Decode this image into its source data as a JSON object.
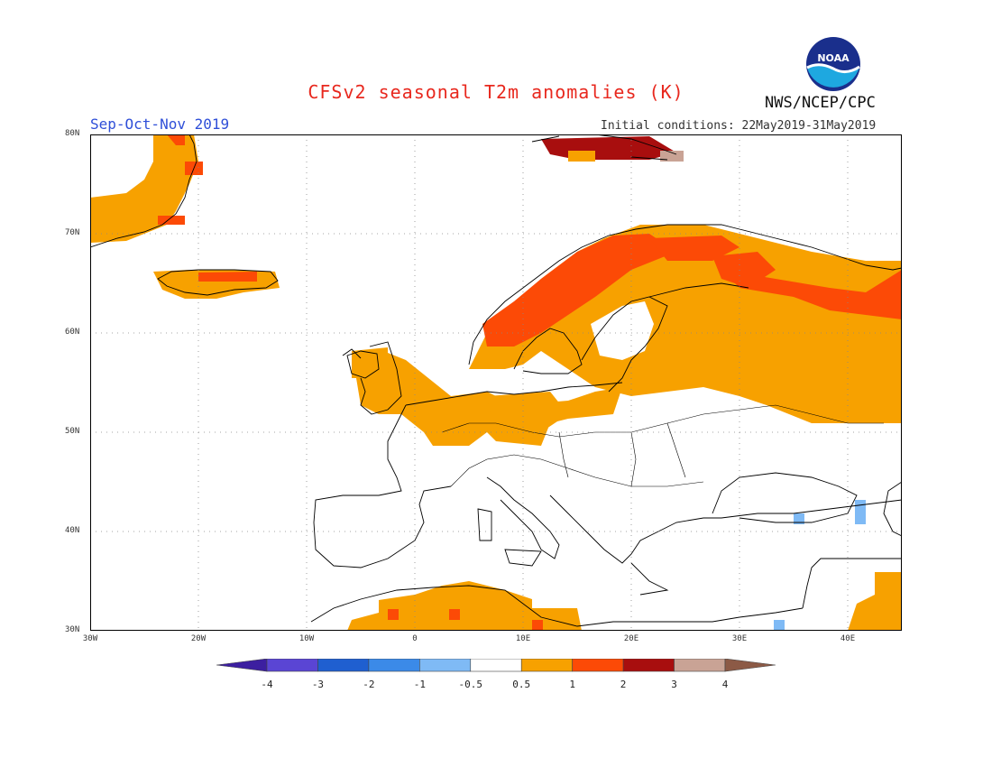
{
  "header": {
    "title": "CFSv2 seasonal T2m anomalies (K)",
    "season": "Sep-Oct-Nov 2019",
    "initial_conditions": "Initial conditions: 22May2019-31May2019",
    "agency": "NWS/NCEP/CPC",
    "logo_icon": "noaa-logo-icon"
  },
  "map": {
    "lon_range": [
      -30,
      45
    ],
    "lat_range": [
      30,
      80
    ],
    "lon_ticks": [
      "30W",
      "20W",
      "10W",
      "0",
      "10E",
      "20E",
      "30E",
      "40E"
    ],
    "lat_ticks": [
      "30N",
      "40N",
      "50N",
      "60N",
      "70N",
      "80N"
    ],
    "gridlines": "dotted",
    "anomaly_regions": [
      {
        "name": "Scandinavia and northwest Russia",
        "category": "1 to 2"
      },
      {
        "name": "Western and central Europe",
        "category": "0.5 to 1"
      },
      {
        "name": "Svalbard",
        "category": "2 to 3"
      },
      {
        "name": "North Africa",
        "category": "0.5 to 1"
      },
      {
        "name": "Turkey and Caucasus",
        "category": "-1 to -0.5"
      }
    ]
  },
  "colorbar": {
    "labels": [
      "-4",
      "-3",
      "-2",
      "-1",
      "-0.5",
      "0.5",
      "1",
      "2",
      "3",
      "4"
    ],
    "colors": [
      "#3c1fa0",
      "#5a45d4",
      "#1f5fd0",
      "#3b8ae8",
      "#7fbaf5",
      "#ffffff",
      "#f7a100",
      "#fc4a06",
      "#a80e0e",
      "#c9a395",
      "#8c5a46"
    ]
  }
}
